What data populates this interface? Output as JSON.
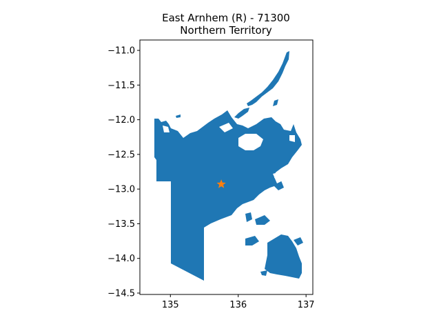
{
  "chart_data": {
    "type": "map",
    "title_line1": "East Arnhem (R) - 71300",
    "title_line2": "Northern Territory",
    "xlim": [
      134.55,
      137.1
    ],
    "ylim": [
      -14.52,
      -10.85
    ],
    "x_ticks": [
      135,
      136,
      137
    ],
    "y_ticks": [
      -11.0,
      -11.5,
      -12.0,
      -12.5,
      -13.0,
      -13.5,
      -14.0,
      -14.5
    ],
    "x_tick_labels": [
      "135",
      "136",
      "137"
    ],
    "y_tick_labels": [
      "−11.0",
      "−11.5",
      "−12.0",
      "−12.5",
      "−13.0",
      "−13.5",
      "−14.0",
      "−14.5"
    ],
    "region_color": "#1f77b4",
    "marker": {
      "lon": 135.75,
      "lat": -12.93,
      "color": "#ff7f0e",
      "shape": "star"
    }
  }
}
